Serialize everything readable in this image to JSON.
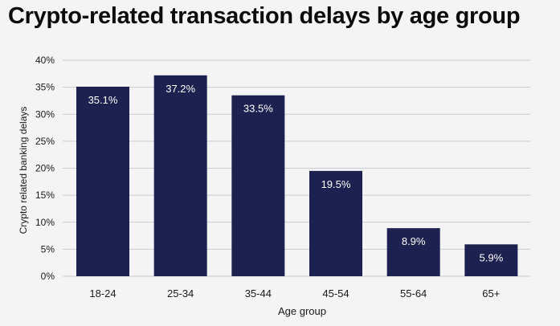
{
  "chart_data": {
    "type": "bar",
    "title": "Crypto-related transaction delays by age group",
    "xlabel": "Age group",
    "ylabel": "Crypto related banking delays",
    "categories": [
      "18-24",
      "25-34",
      "35-44",
      "45-54",
      "55-64",
      "65+"
    ],
    "values": [
      35.1,
      37.2,
      33.5,
      19.5,
      8.9,
      5.9
    ],
    "data_labels": [
      "35.1%",
      "37.2%",
      "33.5%",
      "19.5%",
      "8.9%",
      "5.9%"
    ],
    "ylim": [
      0,
      40
    ],
    "yticks": [
      0,
      5,
      10,
      15,
      20,
      25,
      30,
      35,
      40
    ],
    "ytick_labels": [
      "0%",
      "5%",
      "10%",
      "15%",
      "20%",
      "25%",
      "30%",
      "35%",
      "40%"
    ],
    "grid": true,
    "colors": {
      "bar": "#1c2150",
      "grid": "#c9cad6",
      "label": "#ffffff"
    }
  }
}
